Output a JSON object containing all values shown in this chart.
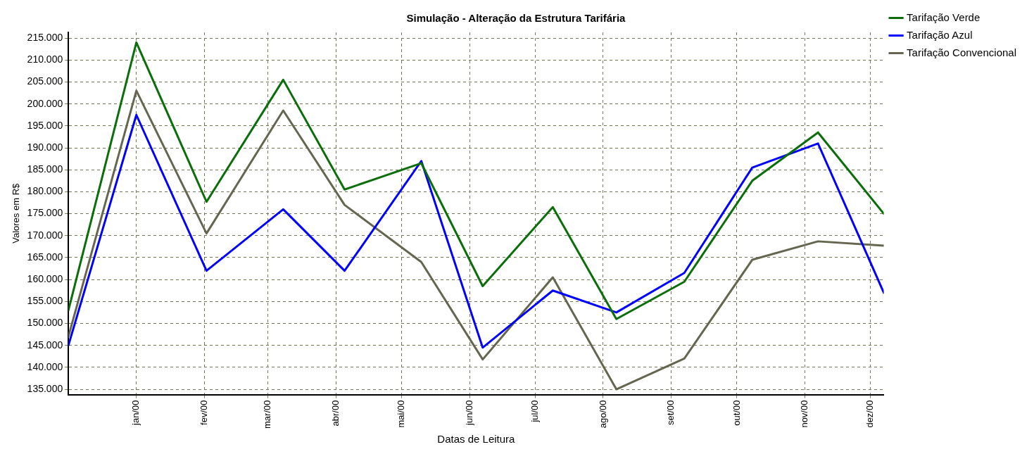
{
  "chart_data": {
    "type": "line",
    "title": "Simulação - Alteração da Estrutura Tarifária",
    "xlabel": "Datas de Leitura",
    "ylabel": "Valores em R$",
    "x": [
      "1999-12-01",
      "2000-01-01",
      "2000-02-02",
      "2000-03-08",
      "2000-04-05",
      "2000-05-10",
      "2000-06-07",
      "2000-07-09",
      "2000-08-07",
      "2000-09-07",
      "2000-10-08",
      "2000-11-07",
      "2000-12-07"
    ],
    "series": [
      {
        "name": "Tarifação Verde",
        "color": "#0b6e0b",
        "values": [
          153000,
          214000,
          177700,
          205500,
          180500,
          186500,
          158500,
          176500,
          151000,
          159500,
          182500,
          193500,
          175000
        ]
      },
      {
        "name": "Tarifação Azul",
        "color": "#0000ff",
        "values": [
          145000,
          197500,
          162000,
          176000,
          162000,
          187000,
          144500,
          157500,
          152500,
          161500,
          185500,
          191000,
          157000
        ]
      },
      {
        "name": "Tarifação Convencional",
        "color": "#666650",
        "values": [
          147000,
          203000,
          170500,
          198500,
          177000,
          164000,
          141800,
          160500,
          135000,
          142000,
          164500,
          168700,
          167700
        ]
      }
    ],
    "xlim": [
      "1999-12-01",
      "2000-12-07"
    ],
    "xticks": [
      {
        "value": "2000-01-01",
        "label": "jan/00"
      },
      {
        "value": "2000-02-01",
        "label": "fev/00"
      },
      {
        "value": "2000-03-01",
        "label": "mar/00"
      },
      {
        "value": "2000-04-01",
        "label": "abr/00"
      },
      {
        "value": "2000-05-01",
        "label": "mai/00"
      },
      {
        "value": "2000-06-01",
        "label": "jun/00"
      },
      {
        "value": "2000-07-01",
        "label": "jul/00"
      },
      {
        "value": "2000-08-01",
        "label": "ago/00"
      },
      {
        "value": "2000-09-01",
        "label": "set/00"
      },
      {
        "value": "2000-10-01",
        "label": "out/00"
      },
      {
        "value": "2000-11-01",
        "label": "nov/00"
      },
      {
        "value": "2000-12-01",
        "label": "dez/00"
      }
    ],
    "ylim": [
      133800,
      216300
    ],
    "yticks": [
      {
        "value": 135000,
        "label": "135.000"
      },
      {
        "value": 140000,
        "label": "140.000"
      },
      {
        "value": 145000,
        "label": "145.000"
      },
      {
        "value": 150000,
        "label": "150.000"
      },
      {
        "value": 155000,
        "label": "155.000"
      },
      {
        "value": 160000,
        "label": "160.000"
      },
      {
        "value": 165000,
        "label": "165.000"
      },
      {
        "value": 170000,
        "label": "170.000"
      },
      {
        "value": 175000,
        "label": "175.000"
      },
      {
        "value": 180000,
        "label": "180.000"
      },
      {
        "value": 185000,
        "label": "185.000"
      },
      {
        "value": 190000,
        "label": "190.000"
      },
      {
        "value": 195000,
        "label": "195.000"
      },
      {
        "value": 200000,
        "label": "200.000"
      },
      {
        "value": 205000,
        "label": "205.000"
      },
      {
        "value": 210000,
        "label": "210.000"
      },
      {
        "value": 215000,
        "label": "215.000"
      }
    ],
    "grid": true,
    "legend": "top right",
    "marker": "none",
    "line_style": "solid"
  }
}
